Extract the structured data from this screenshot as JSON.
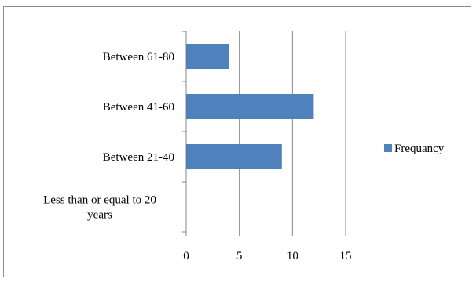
{
  "chart_data": {
    "type": "bar",
    "orientation": "horizontal",
    "categories": [
      "Less than or equal to 20 years",
      "Between 21-40",
      "Between 41-60",
      "Between 61-80"
    ],
    "category_label_lines": [
      [
        "Less than or equal to 20",
        "years"
      ],
      [
        "Between 21-40"
      ],
      [
        "Between 41-60"
      ],
      [
        "Between 61-80"
      ]
    ],
    "series": [
      {
        "name": "Frequancy",
        "values": [
          0,
          9,
          12,
          4
        ],
        "color": "#4f81bd"
      }
    ],
    "xlim": [
      0,
      15
    ],
    "x_ticks": [
      0,
      5,
      10,
      15
    ],
    "grid": "vertical major gridlines",
    "legend_position": "right",
    "title": "",
    "xlabel": "",
    "ylabel": ""
  }
}
